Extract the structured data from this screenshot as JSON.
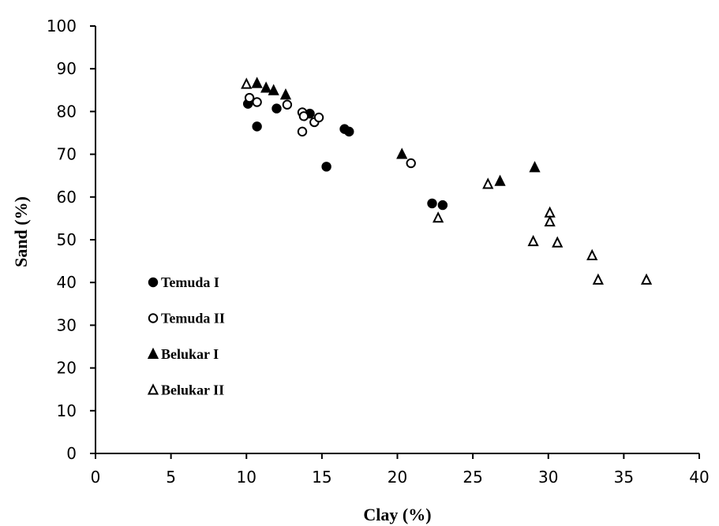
{
  "chart_data": {
    "type": "scatter",
    "xlabel": "Clay (%)",
    "ylabel": "Sand (%)",
    "xlim": [
      0,
      40
    ],
    "ylim": [
      0,
      100
    ],
    "xticks": [
      "0",
      "5",
      "10",
      "15",
      "20",
      "25",
      "30",
      "35",
      "40"
    ],
    "yticks": [
      "0",
      "10",
      "20",
      "30",
      "40",
      "50",
      "60",
      "70",
      "80",
      "90",
      "100"
    ],
    "grid": false,
    "legend_position": "left-middle",
    "series": [
      {
        "name": "Temuda I",
        "marker": "filled-circle",
        "color": "#000000",
        "points": [
          [
            10.1,
            81.8
          ],
          [
            10.7,
            76.5
          ],
          [
            12.0,
            80.7
          ],
          [
            14.2,
            79.5
          ],
          [
            15.3,
            67.1
          ],
          [
            16.5,
            75.9
          ],
          [
            16.8,
            75.3
          ],
          [
            22.3,
            58.5
          ],
          [
            23.0,
            58.1
          ]
        ]
      },
      {
        "name": "Temuda II",
        "marker": "open-circle",
        "color": "#000000",
        "points": [
          [
            10.2,
            83.2
          ],
          [
            10.7,
            82.2
          ],
          [
            12.7,
            81.6
          ],
          [
            13.7,
            79.8
          ],
          [
            13.8,
            78.9
          ],
          [
            13.7,
            75.3
          ],
          [
            14.5,
            77.5
          ],
          [
            14.8,
            78.6
          ],
          [
            20.9,
            67.9
          ]
        ]
      },
      {
        "name": "Belukar I",
        "marker": "filled-triangle",
        "color": "#000000",
        "points": [
          [
            10.7,
            86.6
          ],
          [
            11.3,
            85.5
          ],
          [
            11.8,
            84.9
          ],
          [
            12.6,
            83.9
          ],
          [
            20.3,
            70.0
          ],
          [
            26.8,
            63.7
          ],
          [
            29.1,
            66.9
          ]
        ]
      },
      {
        "name": "Belukar II",
        "marker": "open-triangle",
        "color": "#000000",
        "points": [
          [
            10.0,
            86.4
          ],
          [
            22.7,
            55.1
          ],
          [
            26.0,
            63.0
          ],
          [
            29.0,
            49.6
          ],
          [
            30.1,
            56.3
          ],
          [
            30.1,
            54.2
          ],
          [
            30.6,
            49.3
          ],
          [
            32.9,
            46.3
          ],
          [
            33.3,
            40.6
          ],
          [
            36.5,
            40.6
          ]
        ]
      }
    ]
  }
}
